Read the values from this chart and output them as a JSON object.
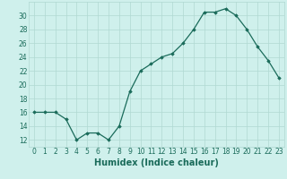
{
  "x": [
    0,
    1,
    2,
    3,
    4,
    5,
    6,
    7,
    8,
    9,
    10,
    11,
    12,
    13,
    14,
    15,
    16,
    17,
    18,
    19,
    20,
    21,
    22,
    23
  ],
  "y": [
    16,
    16,
    16,
    15,
    12,
    13,
    13,
    12,
    14,
    19,
    22,
    23,
    24,
    24.5,
    26,
    28,
    30.5,
    30.5,
    31,
    30,
    28,
    25.5,
    23.5,
    21
  ],
  "line_color": "#1a6b5a",
  "marker": "D",
  "marker_size": 1.8,
  "bg_color": "#cff0ec",
  "grid_color": "#b0d8d2",
  "xlabel": "Humidex (Indice chaleur)",
  "xlim": [
    -0.5,
    23.5
  ],
  "ylim": [
    11,
    32
  ],
  "yticks": [
    12,
    14,
    16,
    18,
    20,
    22,
    24,
    26,
    28,
    30
  ],
  "xticks": [
    0,
    1,
    2,
    3,
    4,
    5,
    6,
    7,
    8,
    9,
    10,
    11,
    12,
    13,
    14,
    15,
    16,
    17,
    18,
    19,
    20,
    21,
    22,
    23
  ],
  "tick_label_size": 5.5,
  "xlabel_size": 7.0
}
